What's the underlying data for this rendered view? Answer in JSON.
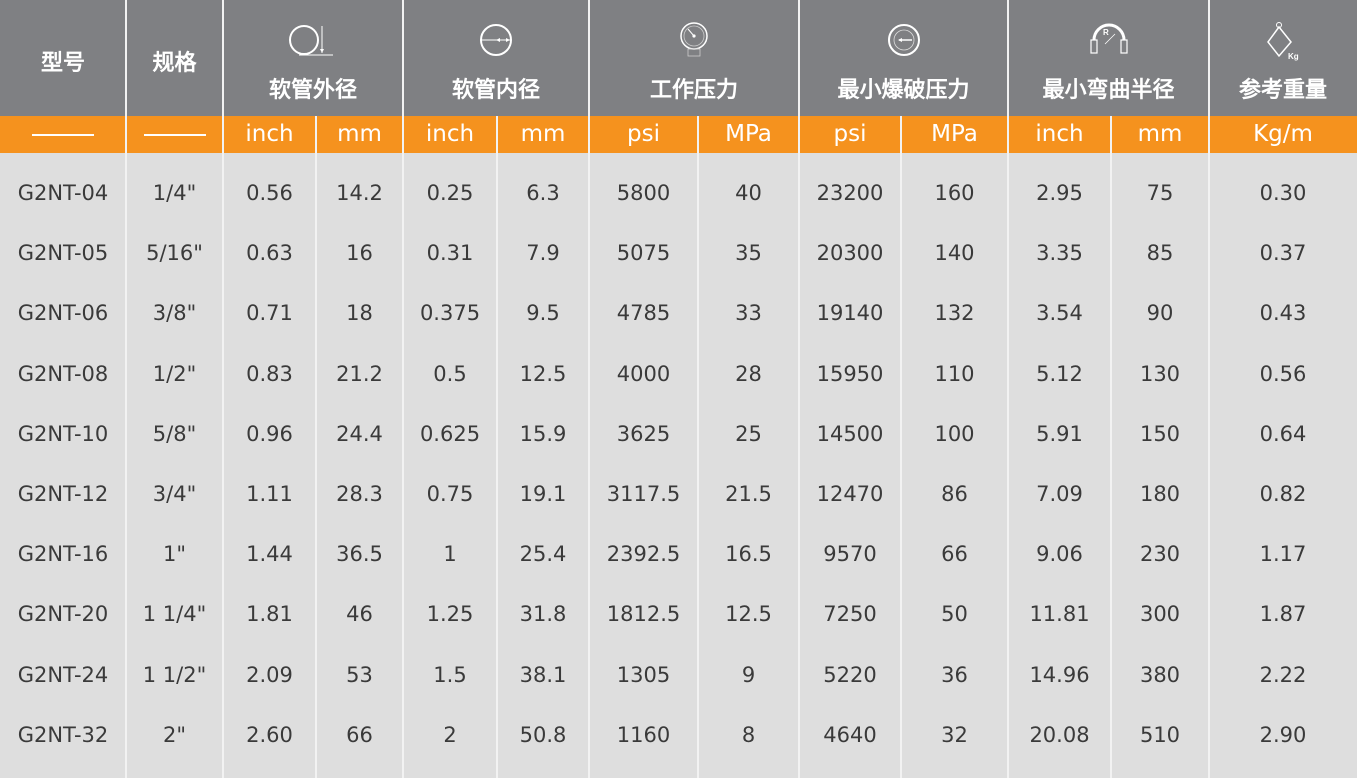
{
  "header": {
    "model": "型号",
    "spec": "规格",
    "outer_diameter": "软管外径",
    "inner_diameter": "软管内径",
    "working_pressure": "工作压力",
    "min_burst_pressure": "最小爆破压力",
    "min_bend_radius": "最小弯曲半径",
    "weight": "参考重量"
  },
  "icons": {
    "outer_diameter": "outer-diameter-icon",
    "inner_diameter": "inner-diameter-icon",
    "working_pressure": "pressure-gauge-icon",
    "min_burst_pressure": "burst-gauge-icon",
    "min_bend_radius": "bend-radius-icon",
    "weight": "weight-kg-icon",
    "bend_radius_letter": "R",
    "weight_letter": "Kg"
  },
  "colors": {
    "header_bg": "#7f8083",
    "units_bg": "#f5921e",
    "body_bg": "#dedede",
    "text": "#3a3a3a"
  },
  "units": [
    "inch",
    "mm",
    "inch",
    "mm",
    "psi",
    "MPa",
    "psi",
    "MPa",
    "inch",
    "mm",
    "Kg/m"
  ],
  "rows": [
    [
      "G2NT-04",
      "1/4\"",
      "0.56",
      "14.2",
      "0.25",
      "6.3",
      "5800",
      "40",
      "23200",
      "160",
      "2.95",
      "75",
      "0.30"
    ],
    [
      "G2NT-05",
      "5/16\"",
      "0.63",
      "16",
      "0.31",
      "7.9",
      "5075",
      "35",
      "20300",
      "140",
      "3.35",
      "85",
      "0.37"
    ],
    [
      "G2NT-06",
      "3/8\"",
      "0.71",
      "18",
      "0.375",
      "9.5",
      "4785",
      "33",
      "19140",
      "132",
      "3.54",
      "90",
      "0.43"
    ],
    [
      "G2NT-08",
      "1/2\"",
      "0.83",
      "21.2",
      "0.5",
      "12.5",
      "4000",
      "28",
      "15950",
      "110",
      "5.12",
      "130",
      "0.56"
    ],
    [
      "G2NT-10",
      "5/8\"",
      "0.96",
      "24.4",
      "0.625",
      "15.9",
      "3625",
      "25",
      "14500",
      "100",
      "5.91",
      "150",
      "0.64"
    ],
    [
      "G2NT-12",
      "3/4\"",
      "1.11",
      "28.3",
      "0.75",
      "19.1",
      "3117.5",
      "21.5",
      "12470",
      "86",
      "7.09",
      "180",
      "0.82"
    ],
    [
      "G2NT-16",
      "1\"",
      "1.44",
      "36.5",
      "1",
      "25.4",
      "2392.5",
      "16.5",
      "9570",
      "66",
      "9.06",
      "230",
      "1.17"
    ],
    [
      "G2NT-20",
      "1 1/4\"",
      "1.81",
      "46",
      "1.25",
      "31.8",
      "1812.5",
      "12.5",
      "7250",
      "50",
      "11.81",
      "300",
      "1.87"
    ],
    [
      "G2NT-24",
      "1 1/2\"",
      "2.09",
      "53",
      "1.5",
      "38.1",
      "1305",
      "9",
      "5220",
      "36",
      "14.96",
      "380",
      "2.22"
    ],
    [
      "G2NT-32",
      "2\"",
      "2.60",
      "66",
      "2",
      "50.8",
      "1160",
      "8",
      "4640",
      "32",
      "20.08",
      "510",
      "2.90"
    ]
  ]
}
